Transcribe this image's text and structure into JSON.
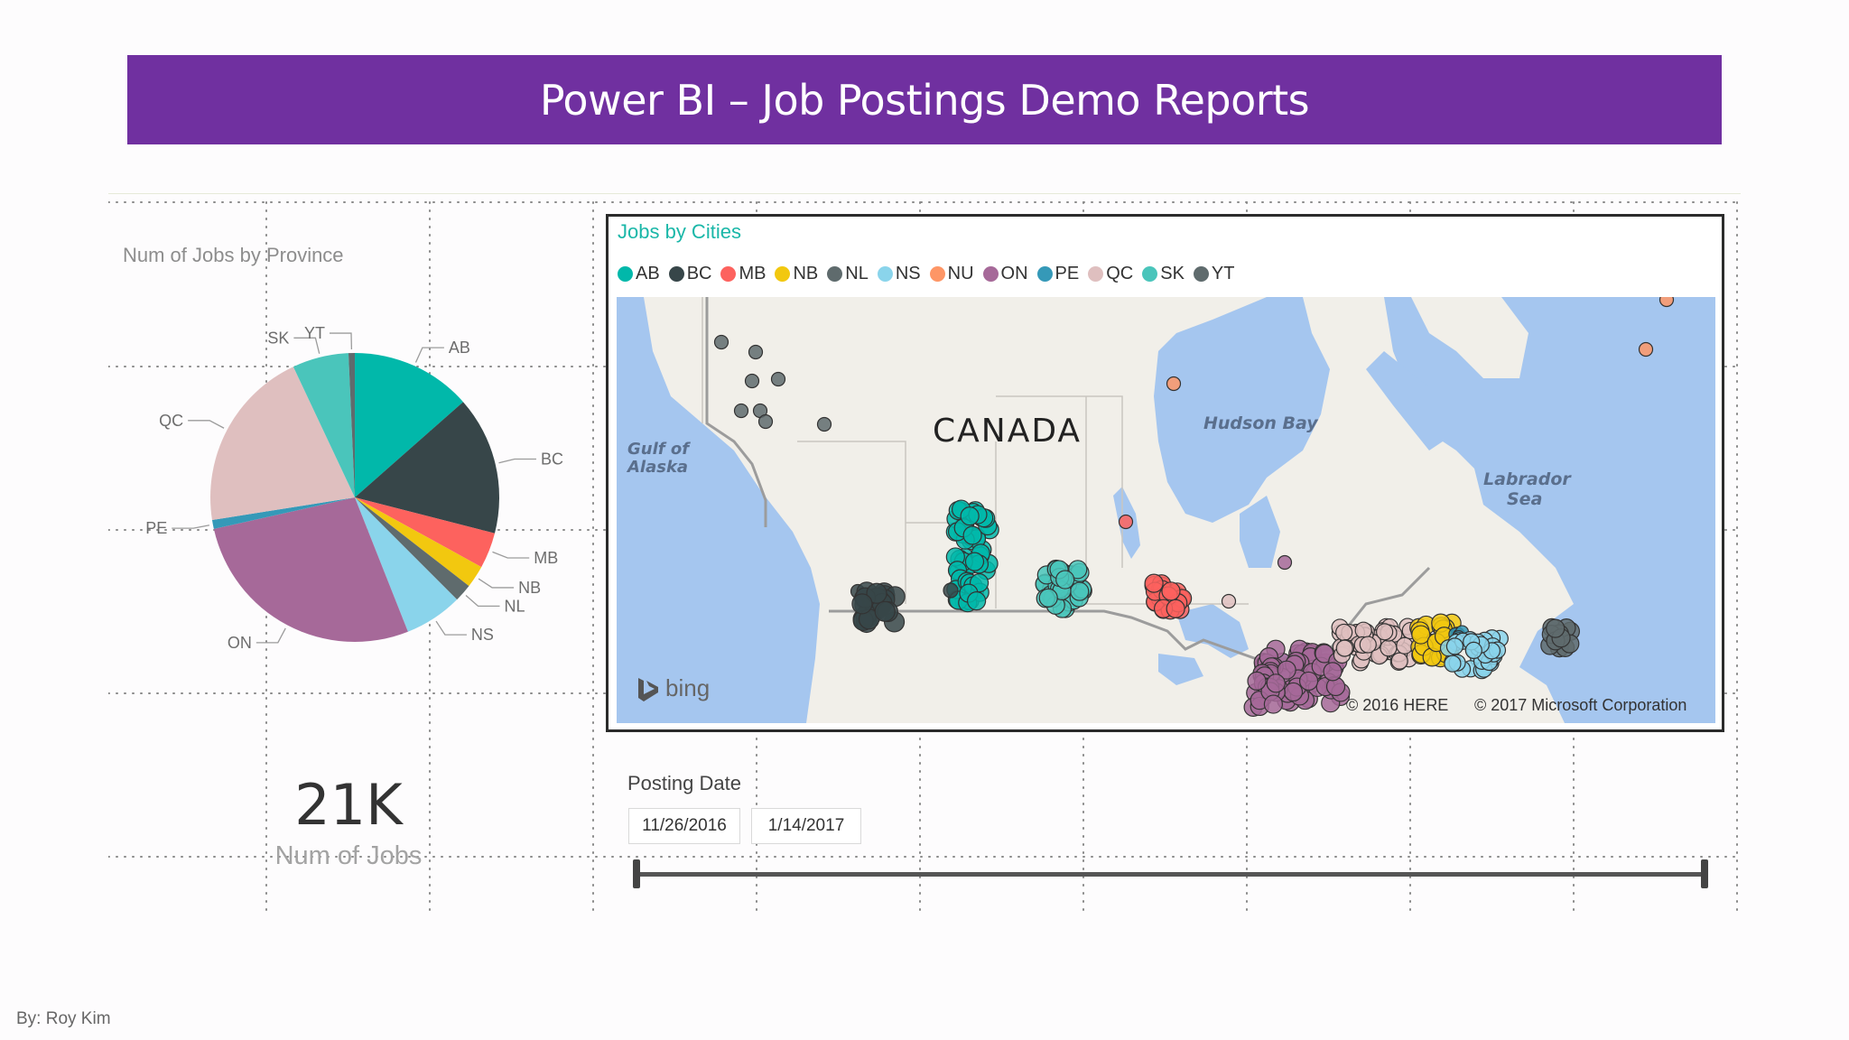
{
  "header": {
    "title": "Power BI – Job Postings Demo Reports"
  },
  "pie": {
    "title": "Num of Jobs by Province",
    "slices": [
      {
        "label": "AB",
        "value": 13.5,
        "color": "#01b8aa"
      },
      {
        "label": "BC",
        "value": 15.5,
        "color": "#374649"
      },
      {
        "label": "MB",
        "value": 4.0,
        "color": "#fd625e"
      },
      {
        "label": "NB",
        "value": 2.5,
        "color": "#f2c80f"
      },
      {
        "label": "NL",
        "value": 2.0,
        "color": "#5f6b6d"
      },
      {
        "label": "NS",
        "value": 6.5,
        "color": "#8ad4eb"
      },
      {
        "label": "ON",
        "value": 27.5,
        "color": "#a66999"
      },
      {
        "label": "PE",
        "value": 1.0,
        "color": "#3599b8"
      },
      {
        "label": "QC",
        "value": 20.5,
        "color": "#dfbfbf"
      },
      {
        "label": "SK",
        "value": 6.3,
        "color": "#4ac5bb"
      },
      {
        "label": "YT",
        "value": 0.7,
        "color": "#5f6b6d"
      }
    ]
  },
  "card": {
    "value": "21K",
    "label": "Num of Jobs"
  },
  "map": {
    "title": "Jobs by Cities",
    "legend": [
      {
        "label": "AB",
        "color": "#01b8aa"
      },
      {
        "label": "BC",
        "color": "#374649"
      },
      {
        "label": "MB",
        "color": "#fd625e"
      },
      {
        "label": "NB",
        "color": "#f2c80f"
      },
      {
        "label": "NL",
        "color": "#5f6b6d"
      },
      {
        "label": "NS",
        "color": "#8ad4eb"
      },
      {
        "label": "NU",
        "color": "#fe9666"
      },
      {
        "label": "ON",
        "color": "#a66999"
      },
      {
        "label": "PE",
        "color": "#3599b8"
      },
      {
        "label": "QC",
        "color": "#dfbfbf"
      },
      {
        "label": "SK",
        "color": "#4ac5bb"
      },
      {
        "label": "YT",
        "color": "#5f6b6d"
      }
    ],
    "labels": {
      "canada": "CANADA",
      "hudson_1": "Hudson Bay",
      "gulf_1": "Gulf of",
      "gulf_2": "Alaska",
      "labrador_1": "Labrador",
      "labrador_2": "Sea"
    },
    "bing": "bing",
    "copyright_here": "© 2016 HERE",
    "copyright_ms": "© 2017 Microsoft Corporation"
  },
  "slicer": {
    "title": "Posting Date",
    "start": "11/26/2016",
    "end": "1/14/2017",
    "range": [
      0,
      1
    ]
  },
  "footer": {
    "author": "By: Roy Kim"
  }
}
